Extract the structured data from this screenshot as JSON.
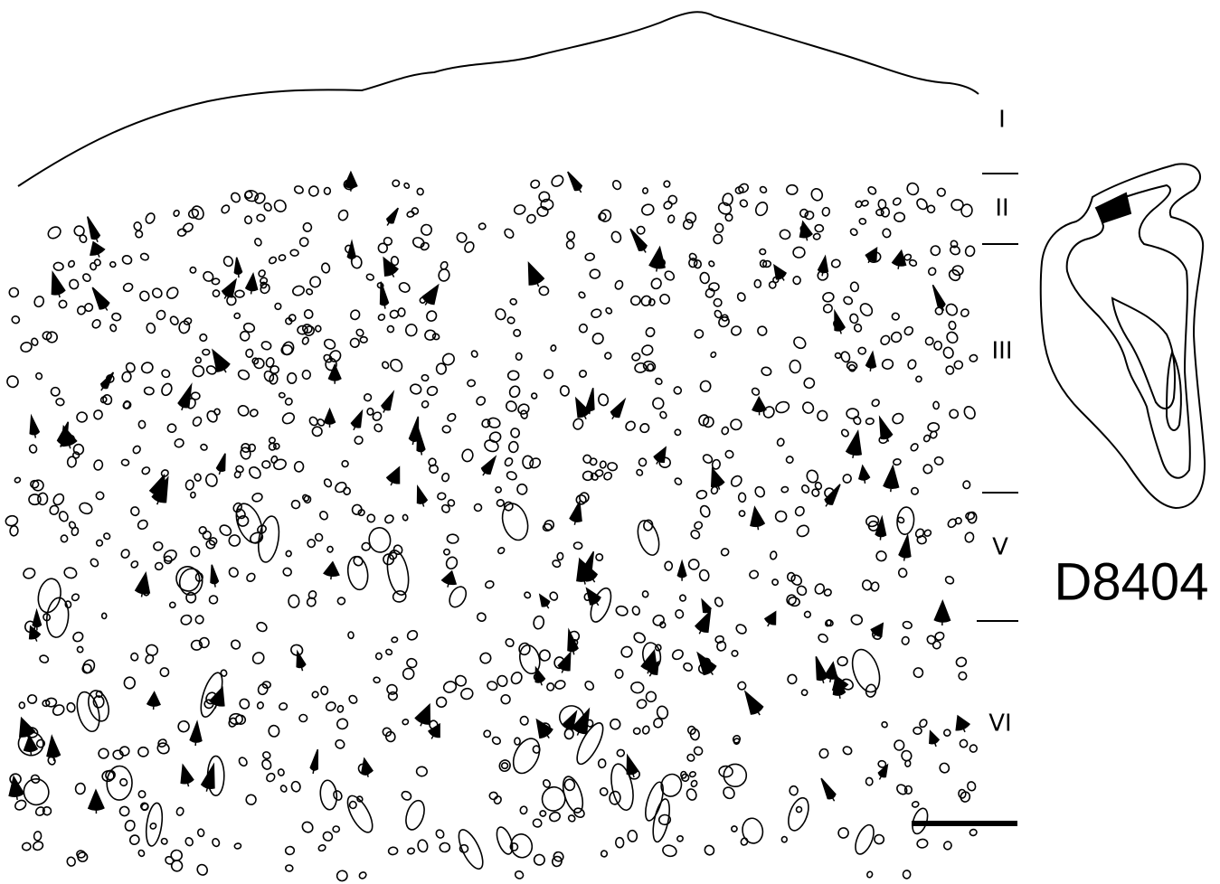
{
  "layers": [
    {
      "label": "I"
    },
    {
      "label": "II"
    },
    {
      "label": "III"
    },
    {
      "label": "V"
    },
    {
      "label": "VI"
    }
  ],
  "specimen_id": "D8404"
}
